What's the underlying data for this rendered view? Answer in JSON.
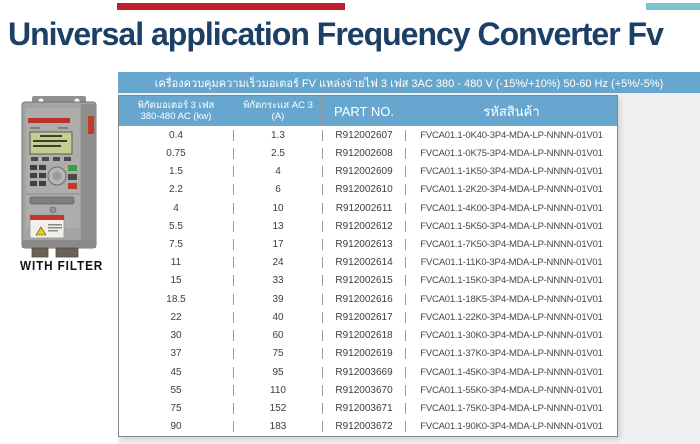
{
  "page": {
    "title": "Universal application Frequency Converter Fv",
    "product_caption": "WITH FILTER"
  },
  "colors": {
    "accent-red": "#c01f2f",
    "accent-teal": "#7cc4ce",
    "title-navy": "#1c3f66",
    "header-blue": "#67a7cf",
    "panel-gray": "#efefef"
  },
  "table": {
    "banner": "เครื่องควบคุมความเร็วมอเตอร์ FV   แหล่งจ่ายไฟ 3 เฟส 3AC 380 - 480 V (-15%/+10%) 50-60 Hz (+5%/-5%)",
    "columns": [
      {
        "line1": "พิกัดมอเตอร์ 3 เฟส",
        "line2": "380-480 AC (kw)"
      },
      {
        "line1": "พิกัดกระแส AC 3",
        "line2": "(A)"
      },
      {
        "line1": "PART NO.",
        "line2": ""
      },
      {
        "line1": "รหัสสินค้า",
        "line2": ""
      }
    ],
    "rows": [
      [
        "0.4",
        "1.3",
        "R912002607",
        "FVCA01.1-0K40-3P4-MDA-LP-NNNN-01V01"
      ],
      [
        "0.75",
        "2.5",
        "R912002608",
        "FVCA01.1-0K75-3P4-MDA-LP-NNNN-01V01"
      ],
      [
        "1.5",
        "4",
        "R912002609",
        "FVCA01.1-1K50-3P4-MDA-LP-NNNN-01V01"
      ],
      [
        "2.2",
        "6",
        "R912002610",
        "FVCA01.1-2K20-3P4-MDA-LP-NNNN-01V01"
      ],
      [
        "4",
        "10",
        "R912002611",
        "FVCA01.1-4K00-3P4-MDA-LP-NNNN-01V01"
      ],
      [
        "5.5",
        "13",
        "R912002612",
        "FVCA01.1-5K50-3P4-MDA-LP-NNNN-01V01"
      ],
      [
        "7.5",
        "17",
        "R912002613",
        "FVCA01.1-7K50-3P4-MDA-LP-NNNN-01V01"
      ],
      [
        "11",
        "24",
        "R912002614",
        "FVCA01.1-11K0-3P4-MDA-LP-NNNN-01V01"
      ],
      [
        "15",
        "33",
        "R912002615",
        "FVCA01.1-15K0-3P4-MDA-LP-NNNN-01V01"
      ],
      [
        "18.5",
        "39",
        "R912002616",
        "FVCA01.1-18K5-3P4-MDA-LP-NNNN-01V01"
      ],
      [
        "22",
        "40",
        "R912002617",
        "FVCA01.1-22K0-3P4-MDA-LP-NNNN-01V01"
      ],
      [
        "30",
        "60",
        "R912002618",
        "FVCA01.1-30K0-3P4-MDA-LP-NNNN-01V01"
      ],
      [
        "37",
        "75",
        "R912002619",
        "FVCA01.1-37K0-3P4-MDA-LP-NNNN-01V01"
      ],
      [
        "45",
        "95",
        "R912003669",
        "FVCA01.1-45K0-3P4-MDA-LP-NNNN-01V01"
      ],
      [
        "55",
        "110",
        "R912003670",
        "FVCA01.1-55K0-3P4-MDA-LP-NNNN-01V01"
      ],
      [
        "75",
        "152",
        "R912003671",
        "FVCA01.1-75K0-3P4-MDA-LP-NNNN-01V01"
      ],
      [
        "90",
        "183",
        "R912003672",
        "FVCA01.1-90K0-3P4-MDA-LP-NNNN-01V01"
      ]
    ],
    "cell_names": [
      "motor-rating-cell",
      "current-rating-cell",
      "part-no-cell",
      "product-code-cell"
    ]
  }
}
